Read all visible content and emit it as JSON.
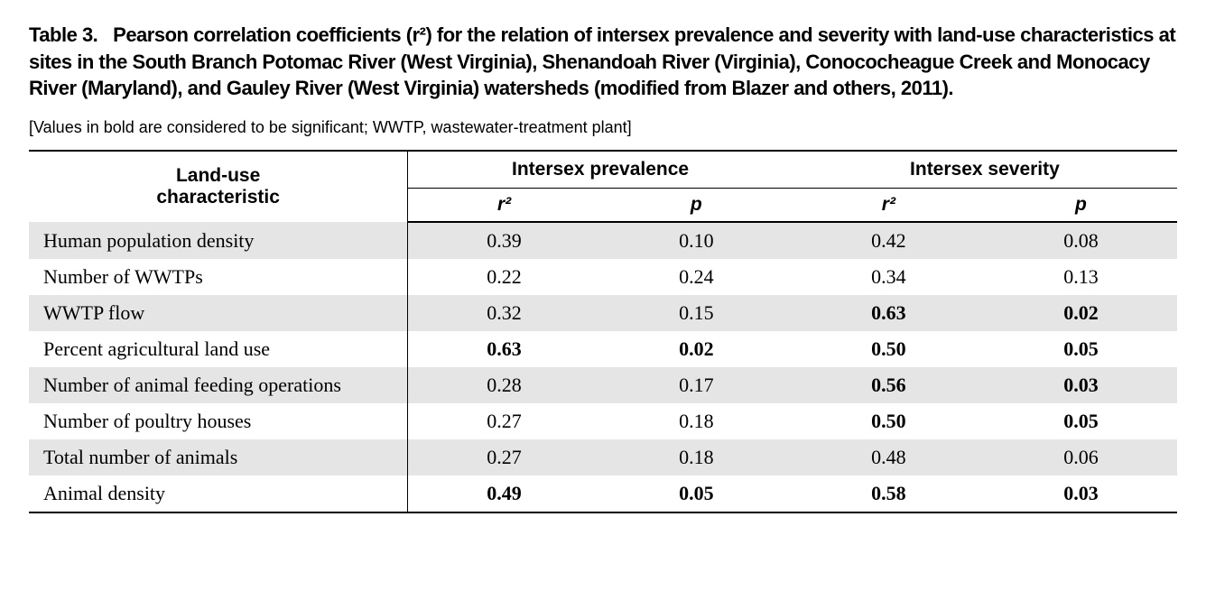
{
  "title_fontsize": 22,
  "note_fontsize": 18,
  "header_fontsize": 21,
  "body_fontsize": 22,
  "body_font": "Times New Roman",
  "header_font": "Arial",
  "shade_color": "#e5e5e5",
  "border_color": "#000000",
  "text_color": "#000000",
  "table_number": "Table 3.",
  "caption": "Pearson correlation coefficients (r²) for the relation of intersex prevalence and severity with land-use characteristics at sites in the South Branch Potomac River (West Virginia), Shenandoah River (Virginia), Conococheague Creek and Monocacy River (Maryland), and Gauley River (West Virginia) watersheds (modified from Blazer and others, 2011).",
  "note": "[Values in bold are considered to be significant; WWTP, wastewater-treatment plant]",
  "header": {
    "rowhead_line1": "Land-use",
    "rowhead_line2": "characteristic",
    "group1": "Intersex prevalence",
    "group2": "Intersex severity",
    "sub_r2": "r²",
    "sub_p": "p"
  },
  "rows": [
    {
      "label": "Human population density",
      "pr_r2": "0.39",
      "pr_p": "0.10",
      "sv_r2": "0.42",
      "sv_p": "0.08",
      "pr_bold": false,
      "sv_bold": false
    },
    {
      "label": "Number of WWTPs",
      "pr_r2": "0.22",
      "pr_p": "0.24",
      "sv_r2": "0.34",
      "sv_p": "0.13",
      "pr_bold": false,
      "sv_bold": false
    },
    {
      "label": "WWTP flow",
      "pr_r2": "0.32",
      "pr_p": "0.15",
      "sv_r2": "0.63",
      "sv_p": "0.02",
      "pr_bold": false,
      "sv_bold": true
    },
    {
      "label": "Percent agricultural land use",
      "pr_r2": "0.63",
      "pr_p": "0.02",
      "sv_r2": "0.50",
      "sv_p": "0.05",
      "pr_bold": true,
      "sv_bold": true
    },
    {
      "label": "Number of animal feeding operations",
      "pr_r2": "0.28",
      "pr_p": "0.17",
      "sv_r2": "0.56",
      "sv_p": "0.03",
      "pr_bold": false,
      "sv_bold": true
    },
    {
      "label": "Number of poultry houses",
      "pr_r2": "0.27",
      "pr_p": "0.18",
      "sv_r2": "0.50",
      "sv_p": "0.05",
      "pr_bold": false,
      "sv_bold": true
    },
    {
      "label": "Total number of animals",
      "pr_r2": "0.27",
      "pr_p": "0.18",
      "sv_r2": "0.48",
      "sv_p": "0.06",
      "pr_bold": false,
      "sv_bold": false
    },
    {
      "label": "Animal density",
      "pr_r2": "0.49",
      "pr_p": "0.05",
      "sv_r2": "0.58",
      "sv_p": "0.03",
      "pr_bold": true,
      "sv_bold": true
    }
  ]
}
